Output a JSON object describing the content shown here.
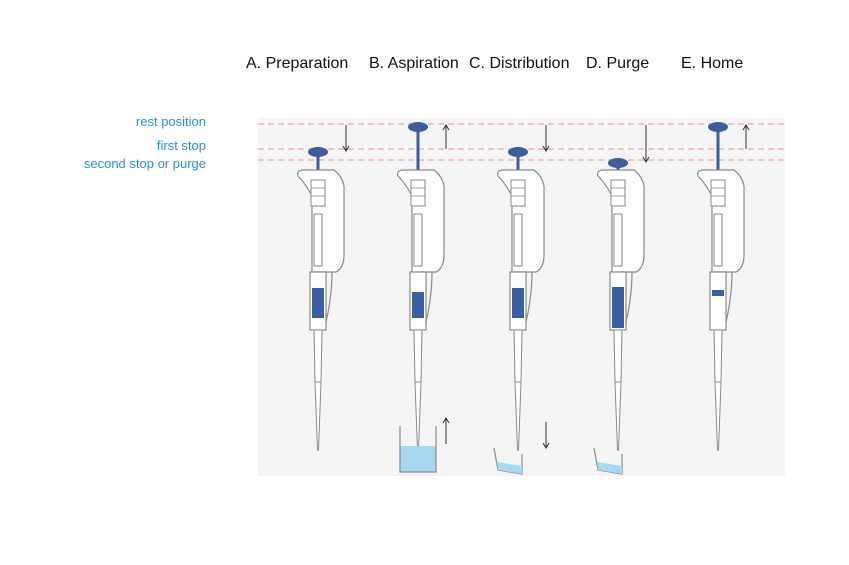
{
  "steps": [
    {
      "title": "A. Preparation",
      "plunger": "first",
      "tip": "straight",
      "liquid_in_pipette": "large",
      "container": "none",
      "arrow": "down"
    },
    {
      "title": "B. Aspiration",
      "plunger": "rest",
      "tip": "straight",
      "liquid_in_pipette": "medium",
      "container": "full-beaker",
      "arrow": "up"
    },
    {
      "title": "C. Distribution",
      "plunger": "first",
      "tip": "straight",
      "liquid_in_pipette": "large",
      "container": "tilted-cup",
      "arrow": "down"
    },
    {
      "title": "D. Purge",
      "plunger": "second",
      "tip": "straight",
      "liquid_in_pipette": "full",
      "container": "tilted-cup",
      "arrow": "down"
    },
    {
      "title": "E. Home",
      "plunger": "rest",
      "tip": "straight",
      "liquid_in_pipette": "small",
      "container": "none",
      "arrow": "up"
    }
  ],
  "positions": {
    "rest": "rest position",
    "first": "first stop",
    "second": "second stop or purge"
  },
  "colors": {
    "label_blue": "#2b8fd8",
    "guide_line": "#e6a6b3",
    "plunger": "#3e5d9a",
    "liquid": "#3b5fa3",
    "water": "#a8d7f0",
    "background_panel": "#f4f4f4",
    "outline": "#8a8a8a"
  }
}
